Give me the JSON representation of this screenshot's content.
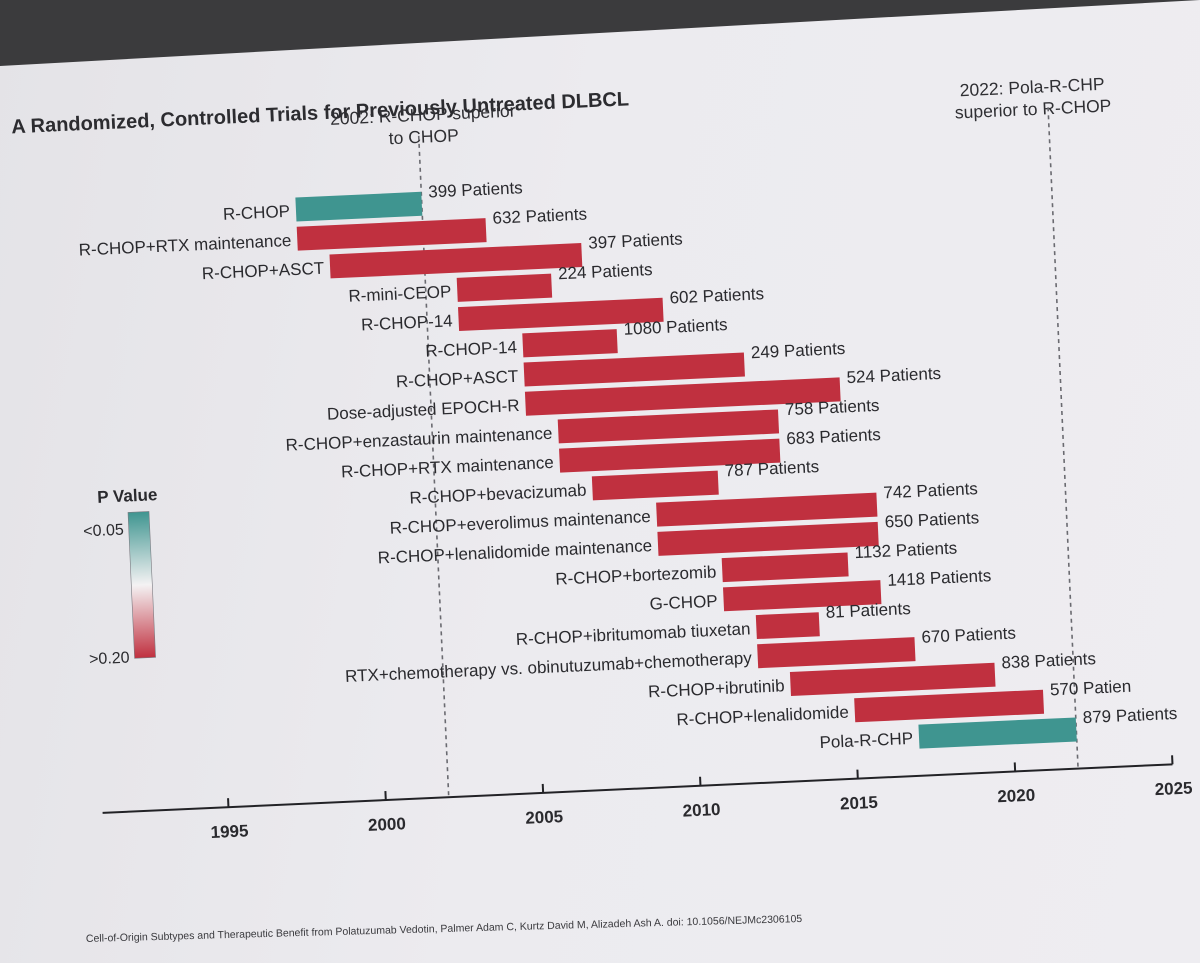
{
  "title": "A  Randomized, Controlled Trials for Previously Untreated DLBCL",
  "annotations": [
    {
      "lines": [
        "2002: R-CHOP superior",
        "to CHOP"
      ],
      "year": 2002
    },
    {
      "lines": [
        "2022: Pola-R-CHP",
        "superior to R-CHOP"
      ],
      "year": 2022
    }
  ],
  "legend": {
    "title": "P Value",
    "low_label": "<0.05",
    "high_label": ">0.20"
  },
  "colors": {
    "significant": "#3f9590",
    "not_significant": "#c0303f",
    "axis": "#222226",
    "text": "#2a2a2e"
  },
  "citation": "Cell-of-Origin Subtypes and Therapeutic Benefit from Polatuzumab Vedotin, Palmer Adam C, Kurtz David M, Alizadeh Ash A. doi: 10.1056/NEJMc2306105",
  "chart_data": {
    "type": "bar",
    "orientation": "horizontal",
    "xlim": [
      1991,
      2025
    ],
    "xticks": [
      1995,
      2000,
      2005,
      2010,
      2015,
      2020,
      2025
    ],
    "reference_lines": [
      2002,
      2022
    ],
    "bars": [
      {
        "label": "R-CHOP",
        "start": 1998,
        "end": 2002,
        "patients": "399 Patients",
        "p": "<0.05"
      },
      {
        "label": "R-CHOP+RTX maintenance",
        "start": 1998,
        "end": 2004,
        "patients": "632 Patients",
        "p": ">0.20"
      },
      {
        "label": "R-CHOP+ASCT",
        "start": 1999,
        "end": 2007,
        "patients": "397 Patients",
        "p": ">0.20"
      },
      {
        "label": "R-mini-CEOP",
        "start": 2003,
        "end": 2006,
        "patients": "224 Patients",
        "p": ">0.20"
      },
      {
        "label": "R-CHOP-14",
        "start": 2003,
        "end": 2009.5,
        "patients": "602 Patients",
        "p": ">0.20"
      },
      {
        "label": "R-CHOP-14",
        "start": 2005,
        "end": 2008,
        "patients": "1080 Patients",
        "p": ">0.20"
      },
      {
        "label": "R-CHOP+ASCT",
        "start": 2005,
        "end": 2012,
        "patients": "249 Patients",
        "p": ">0.20"
      },
      {
        "label": "Dose-adjusted EPOCH-R",
        "start": 2005,
        "end": 2015,
        "patients": "524 Patients",
        "p": ">0.20"
      },
      {
        "label": "R-CHOP+enzastaurin maintenance",
        "start": 2006,
        "end": 2013,
        "patients": "758 Patients",
        "p": ">0.20"
      },
      {
        "label": "R-CHOP+RTX maintenance",
        "start": 2006,
        "end": 2013,
        "patients": "683 Patients",
        "p": ">0.20"
      },
      {
        "label": "R-CHOP+bevacizumab",
        "start": 2007,
        "end": 2011,
        "patients": "787 Patients",
        "p": ">0.20"
      },
      {
        "label": "R-CHOP+everolimus maintenance",
        "start": 2009,
        "end": 2016,
        "patients": "742 Patients",
        "p": ">0.20"
      },
      {
        "label": "R-CHOP+lenalidomide maintenance",
        "start": 2009,
        "end": 2016,
        "patients": "650 Patients",
        "p": ">0.20"
      },
      {
        "label": "R-CHOP+bortezomib",
        "start": 2011,
        "end": 2015,
        "patients": "1132 Patients",
        "p": ">0.20"
      },
      {
        "label": "G-CHOP",
        "start": 2011,
        "end": 2016,
        "patients": "1418 Patients",
        "p": ">0.20"
      },
      {
        "label": "R-CHOP+ibritumomab tiuxetan",
        "start": 2012,
        "end": 2014,
        "patients": "81 Patients",
        "p": ">0.20"
      },
      {
        "label": "RTX+chemotherapy vs. obinutuzumab+chemotherapy",
        "start": 2012,
        "end": 2017,
        "patients": "670 Patients",
        "p": ">0.20"
      },
      {
        "label": "R-CHOP+ibrutinib",
        "start": 2013,
        "end": 2019.5,
        "patients": "838 Patients",
        "p": ">0.20"
      },
      {
        "label": "R-CHOP+lenalidomide",
        "start": 2015,
        "end": 2021,
        "patients": "570 Patien",
        "p": ">0.20"
      },
      {
        "label": "Pola-R-CHP",
        "start": 2017,
        "end": 2022,
        "patients": "879 Patients",
        "p": "<0.05"
      }
    ]
  }
}
